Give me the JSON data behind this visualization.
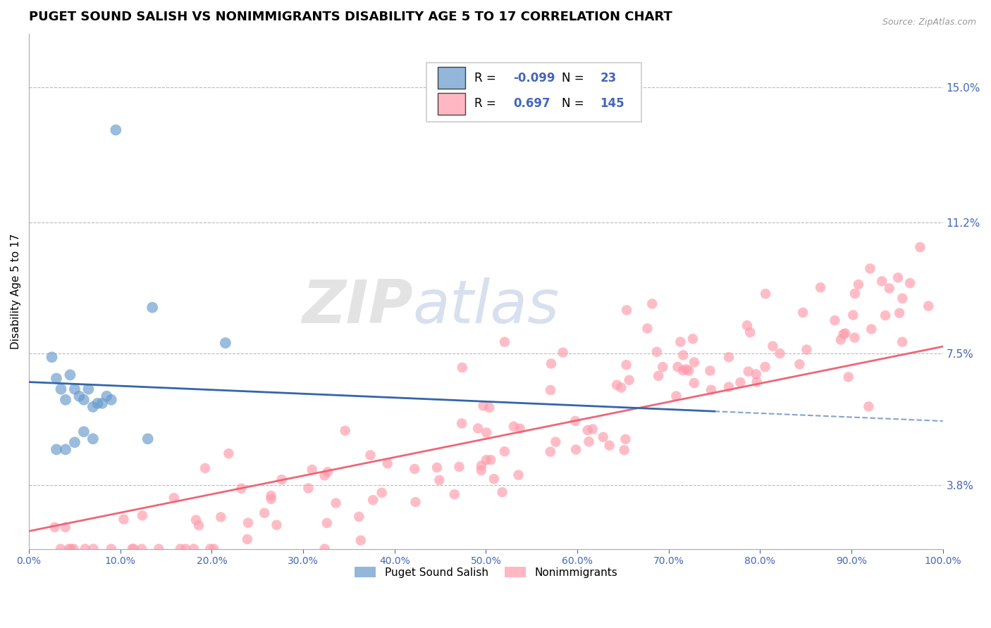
{
  "title": "PUGET SOUND SALISH VS NONIMMIGRANTS DISABILITY AGE 5 TO 17 CORRELATION CHART",
  "source": "Source: ZipAtlas.com",
  "ylabel": "Disability Age 5 to 17",
  "xlim": [
    0.0,
    100.0
  ],
  "ylim": [
    2.0,
    16.5
  ],
  "yticks": [
    3.8,
    7.5,
    11.2,
    15.0
  ],
  "xticks": [
    0.0,
    10.0,
    20.0,
    30.0,
    40.0,
    50.0,
    60.0,
    70.0,
    80.0,
    90.0,
    100.0
  ],
  "blue_R": -0.099,
  "blue_N": 23,
  "pink_R": 0.697,
  "pink_N": 145,
  "blue_color": "#6699CC",
  "blue_line_color": "#3366AA",
  "pink_color": "#FF99AA",
  "pink_line_color": "#EE6677",
  "blue_label": "Puget Sound Salish",
  "pink_label": "Nonimmigrants",
  "watermark_zip": "ZIP",
  "watermark_atlas": "atlas",
  "title_fontsize": 13,
  "axis_color": "#4466BB",
  "grid_color": "#BBBBBB",
  "background_color": "#FFFFFF",
  "blue_scatter_x": [
    9.5,
    13.5,
    21.5,
    2.5,
    3.0,
    3.5,
    4.0,
    4.5,
    5.0,
    5.5,
    6.0,
    6.5,
    7.0,
    7.5,
    8.0,
    8.5,
    9.0,
    3.0,
    4.0,
    5.0,
    6.0,
    7.0,
    13.0
  ],
  "blue_scatter_y": [
    13.8,
    8.8,
    7.8,
    7.4,
    6.8,
    6.5,
    6.2,
    6.9,
    6.5,
    6.3,
    6.2,
    6.5,
    6.0,
    6.1,
    6.1,
    6.3,
    6.2,
    4.8,
    4.8,
    5.0,
    5.3,
    5.1,
    5.1
  ],
  "blue_line_x": [
    0,
    100
  ],
  "blue_line_y": [
    6.7,
    5.6
  ],
  "pink_line_x": [
    0,
    100
  ],
  "pink_line_y": [
    2.5,
    7.7
  ]
}
